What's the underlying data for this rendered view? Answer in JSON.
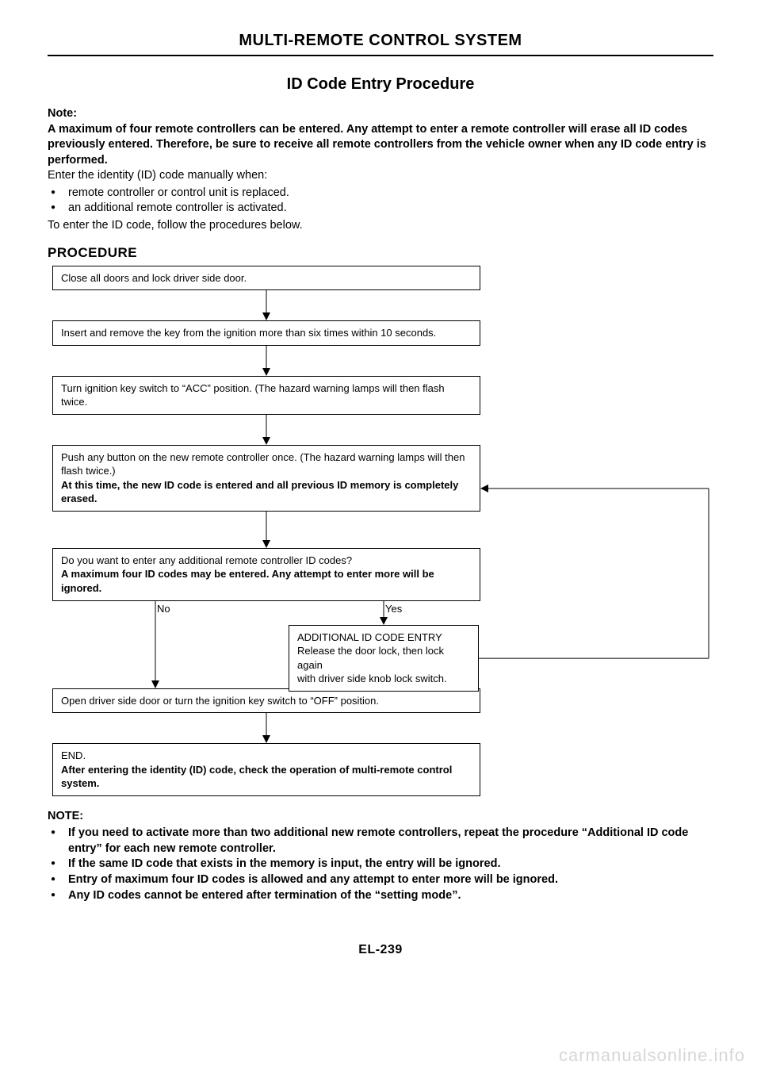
{
  "header": {
    "title": "MULTI-REMOTE CONTROL SYSTEM"
  },
  "section": {
    "title": "ID Code Entry Procedure"
  },
  "intro": {
    "note_label": "Note:",
    "note_body": "A maximum of four remote controllers can be entered. Any attempt to enter a remote controller will erase all ID codes previously entered. Therefore, be sure to receive all remote controllers from the vehicle owner when any ID code entry is performed.",
    "line1": "Enter the identity (ID) code manually when:",
    "b1": "remote controller or control unit is replaced.",
    "b2": "an additional remote controller is activated.",
    "line2": "To enter the ID code, follow the procedures below."
  },
  "procedure_heading": "PROCEDURE",
  "flow": {
    "box1": "Close all doors and lock driver side door.",
    "box2": "Insert and remove the key from the ignition more than six times within 10 seconds.",
    "box3": "Turn ignition key switch to “ACC” position. (The hazard warning lamps will then flash twice.",
    "box4a": "Push any button on the new remote controller once. (The hazard warning lamps will then flash twice.)",
    "box4b": "At this time, the new ID code is entered and all previous ID memory is completely erased.",
    "box5a": "Do you want to enter any additional remote controller ID codes?",
    "box5b": "A maximum four ID codes may be entered. Any attempt to enter more will be ignored.",
    "no_label": "No",
    "yes_label": "Yes",
    "addbox_title": "ADDITIONAL ID CODE ENTRY",
    "addbox_line1": "Release the door lock, then lock again",
    "addbox_line2": "with driver side knob lock switch.",
    "box6": "Open driver side door or turn the ignition key switch to “OFF” position.",
    "box7a": "END.",
    "box7b": "After entering the identity (ID) code, check the operation of multi-remote control system."
  },
  "notes": {
    "label": "NOTE:",
    "n1": "If you need to activate more than two additional new remote controllers, repeat the procedure “Additional ID code entry” for each new remote controller.",
    "n2": "If the same ID code that exists in the memory is input, the entry will be ignored.",
    "n3": "Entry of maximum four ID codes is allowed and any attempt to enter more will be ignored.",
    "n4": "Any ID codes cannot be entered after termination of the “setting mode”."
  },
  "footer": {
    "page": "EL-239"
  },
  "watermark": "carmanualsonline.info",
  "style": {
    "arrow_height": 38,
    "arrow_height_tall": 46
  }
}
